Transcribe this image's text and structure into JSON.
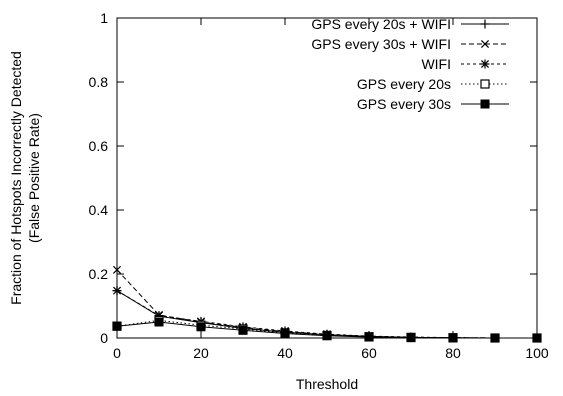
{
  "chart_data": {
    "type": "line",
    "xlabel": "Threshold",
    "ylabel_lines": [
      "Fraction of Hotspots Incorrectly Detected",
      "(False Positive Rate)"
    ],
    "xlim": [
      0,
      100
    ],
    "ylim": [
      0,
      1
    ],
    "xticks": [
      0,
      20,
      40,
      60,
      80,
      100
    ],
    "xtick_labels": [
      "0",
      "20",
      "40",
      "60",
      "80",
      "100"
    ],
    "yticks": [
      0,
      0.2,
      0.4,
      0.6,
      0.8,
      1
    ],
    "ytick_labels": [
      "0",
      "0.2",
      "0.4",
      "0.6",
      "0.8",
      "1"
    ],
    "grid": false,
    "legend_position": "top-right",
    "x": [
      0,
      10,
      20,
      30,
      40,
      50,
      60,
      70,
      80,
      90,
      100
    ],
    "series": [
      {
        "name": "GPS every 20s + WIFI",
        "marker": "plus",
        "dash": "solid",
        "values": [
          0.148,
          0.068,
          0.048,
          0.03,
          0.018,
          0.01,
          0.005,
          0.002,
          0.001,
          0.0,
          0.0
        ]
      },
      {
        "name": "GPS every 30s + WIFI",
        "marker": "cross",
        "dash": "dashed",
        "values": [
          0.213,
          0.072,
          0.05,
          0.033,
          0.02,
          0.011,
          0.005,
          0.002,
          0.001,
          0.0,
          0.0
        ]
      },
      {
        "name": "WIFI",
        "marker": "star",
        "dash": "dotted-dash",
        "values": [
          0.148,
          0.07,
          0.052,
          0.035,
          0.022,
          0.012,
          0.006,
          0.003,
          0.001,
          0.0,
          0.0
        ]
      },
      {
        "name": "GPS every 20s",
        "marker": "open-square",
        "dash": "dotted",
        "values": [
          0.037,
          0.055,
          0.04,
          0.028,
          0.016,
          0.008,
          0.004,
          0.002,
          0.001,
          0.0,
          0.0
        ]
      },
      {
        "name": "GPS every 30s",
        "marker": "filled-square",
        "dash": "solid",
        "values": [
          0.037,
          0.05,
          0.035,
          0.024,
          0.014,
          0.007,
          0.003,
          0.001,
          0.0,
          0.0,
          0.0
        ]
      }
    ]
  }
}
